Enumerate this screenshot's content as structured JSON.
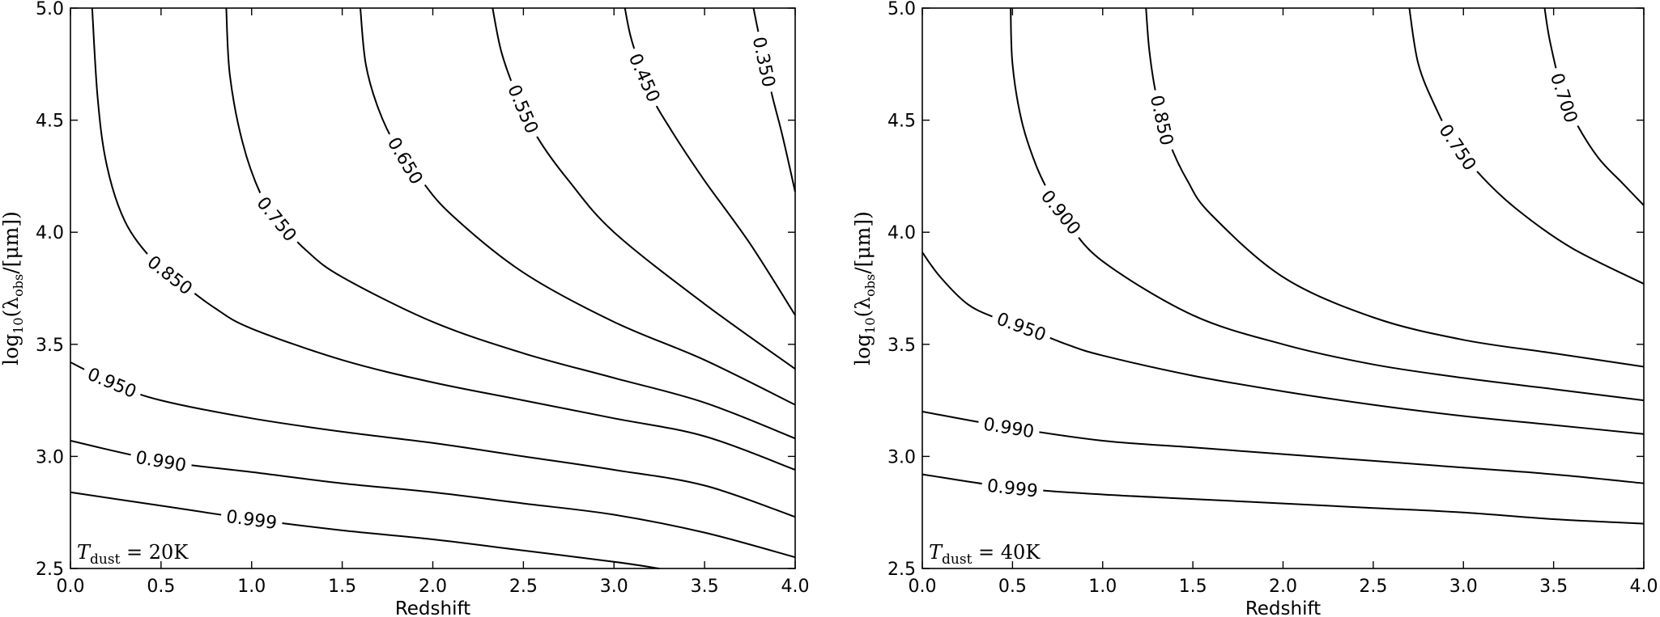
{
  "chart_data": [
    {
      "type": "contour",
      "xlabel": "Redshift",
      "ylabel": "log10(λobs/[μm])",
      "xlim": [
        0.0,
        4.0
      ],
      "ylim": [
        2.5,
        5.0
      ],
      "xticks": [
        "0.0",
        "0.5",
        "1.0",
        "1.5",
        "2.0",
        "2.5",
        "3.0",
        "3.5",
        "4.0"
      ],
      "yticks": [
        "2.5",
        "3.0",
        "3.5",
        "4.0",
        "4.5",
        "5.0"
      ],
      "annotation": {
        "T": "T",
        "sub": "dust",
        "rest": " = 20K"
      },
      "contours": [
        {
          "level": "0.999",
          "label_at": [
            1.0,
            2.72
          ],
          "points": [
            [
              0.0,
              2.84
            ],
            [
              0.5,
              2.78
            ],
            [
              1.0,
              2.72
            ],
            [
              1.5,
              2.67
            ],
            [
              2.0,
              2.63
            ],
            [
              2.5,
              2.58
            ],
            [
              3.0,
              2.53
            ],
            [
              3.25,
              2.5
            ]
          ]
        },
        {
          "level": "0.990",
          "label_at": [
            0.5,
            2.98
          ],
          "points": [
            [
              0.0,
              3.07
            ],
            [
              0.5,
              2.98
            ],
            [
              1.0,
              2.93
            ],
            [
              1.5,
              2.88
            ],
            [
              2.0,
              2.84
            ],
            [
              2.5,
              2.79
            ],
            [
              3.0,
              2.74
            ],
            [
              3.5,
              2.66
            ],
            [
              4.0,
              2.55
            ]
          ]
        },
        {
          "level": "0.950",
          "label_at": [
            0.23,
            3.33
          ],
          "points": [
            [
              0.0,
              3.42
            ],
            [
              0.25,
              3.32
            ],
            [
              0.5,
              3.25
            ],
            [
              1.0,
              3.17
            ],
            [
              1.5,
              3.11
            ],
            [
              2.0,
              3.06
            ],
            [
              2.5,
              3.0
            ],
            [
              3.0,
              2.94
            ],
            [
              3.5,
              2.87
            ],
            [
              4.0,
              2.73
            ]
          ]
        },
        {
          "level": "0.850",
          "label_at": [
            0.55,
            3.81
          ],
          "points": [
            [
              0.12,
              5.0
            ],
            [
              0.15,
              4.6
            ],
            [
              0.2,
              4.3
            ],
            [
              0.3,
              4.05
            ],
            [
              0.45,
              3.88
            ],
            [
              0.6,
              3.78
            ],
            [
              0.8,
              3.66
            ],
            [
              1.0,
              3.57
            ],
            [
              1.5,
              3.43
            ],
            [
              2.0,
              3.33
            ],
            [
              2.5,
              3.25
            ],
            [
              3.0,
              3.17
            ],
            [
              3.5,
              3.09
            ],
            [
              4.0,
              2.94
            ]
          ]
        },
        {
          "level": "0.750",
          "label_at": [
            1.14,
            4.06
          ],
          "points": [
            [
              0.86,
              5.0
            ],
            [
              0.88,
              4.7
            ],
            [
              0.95,
              4.4
            ],
            [
              1.05,
              4.17
            ],
            [
              1.15,
              4.05
            ],
            [
              1.3,
              3.92
            ],
            [
              1.5,
              3.8
            ],
            [
              2.0,
              3.6
            ],
            [
              2.5,
              3.46
            ],
            [
              3.0,
              3.35
            ],
            [
              3.5,
              3.24
            ],
            [
              4.0,
              3.08
            ]
          ]
        },
        {
          "level": "0.650",
          "label_at": [
            1.85,
            4.32
          ],
          "points": [
            [
              1.6,
              5.0
            ],
            [
              1.63,
              4.75
            ],
            [
              1.7,
              4.55
            ],
            [
              1.8,
              4.38
            ],
            [
              1.92,
              4.25
            ],
            [
              2.1,
              4.08
            ],
            [
              2.5,
              3.82
            ],
            [
              3.0,
              3.6
            ],
            [
              3.5,
              3.43
            ],
            [
              4.0,
              3.23
            ]
          ]
        },
        {
          "level": "0.550",
          "label_at": [
            2.5,
            4.55
          ],
          "points": [
            [
              2.33,
              5.0
            ],
            [
              2.38,
              4.8
            ],
            [
              2.47,
              4.6
            ],
            [
              2.58,
              4.42
            ],
            [
              2.75,
              4.23
            ],
            [
              3.0,
              4.0
            ],
            [
              3.5,
              3.68
            ],
            [
              4.0,
              3.39
            ]
          ]
        },
        {
          "level": "0.450",
          "label_at": [
            3.17,
            4.69
          ],
          "points": [
            [
              3.06,
              5.0
            ],
            [
              3.1,
              4.85
            ],
            [
              3.2,
              4.62
            ],
            [
              3.32,
              4.45
            ],
            [
              3.5,
              4.23
            ],
            [
              3.75,
              3.95
            ],
            [
              4.0,
              3.63
            ]
          ]
        },
        {
          "level": "0.350",
          "label_at": [
            3.83,
            4.76
          ],
          "points": [
            [
              3.77,
              5.0
            ],
            [
              3.8,
              4.88
            ],
            [
              3.87,
              4.62
            ],
            [
              3.93,
              4.43
            ],
            [
              4.0,
              4.18
            ]
          ]
        }
      ]
    },
    {
      "type": "contour",
      "xlabel": "Redshift",
      "ylabel": "log10(λobs/[μm])",
      "xlim": [
        0.0,
        4.0
      ],
      "ylim": [
        2.5,
        5.0
      ],
      "xticks": [
        "0.0",
        "0.5",
        "1.0",
        "1.5",
        "2.0",
        "2.5",
        "3.0",
        "3.5",
        "4.0"
      ],
      "yticks": [
        "2.5",
        "3.0",
        "3.5",
        "4.0",
        "4.5",
        "5.0"
      ],
      "annotation": {
        "T": "T",
        "sub": "dust",
        "rest": " = 40K"
      },
      "contours": [
        {
          "level": "0.999",
          "label_at": [
            0.5,
            2.86
          ],
          "points": [
            [
              0.0,
              2.92
            ],
            [
              0.5,
              2.86
            ],
            [
              1.0,
              2.83
            ],
            [
              1.5,
              2.81
            ],
            [
              2.0,
              2.79
            ],
            [
              2.5,
              2.77
            ],
            [
              3.0,
              2.75
            ],
            [
              3.5,
              2.72
            ],
            [
              4.0,
              2.7
            ]
          ]
        },
        {
          "level": "0.990",
          "label_at": [
            0.48,
            3.13
          ],
          "points": [
            [
              0.0,
              3.2
            ],
            [
              0.48,
              3.13
            ],
            [
              1.0,
              3.07
            ],
            [
              1.5,
              3.04
            ],
            [
              2.0,
              3.01
            ],
            [
              2.5,
              2.98
            ],
            [
              3.0,
              2.95
            ],
            [
              3.5,
              2.92
            ],
            [
              4.0,
              2.88
            ]
          ]
        },
        {
          "level": "0.950",
          "label_at": [
            0.55,
            3.58
          ],
          "points": [
            [
              0.0,
              3.91
            ],
            [
              0.1,
              3.8
            ],
            [
              0.25,
              3.68
            ],
            [
              0.4,
              3.62
            ],
            [
              0.55,
              3.58
            ],
            [
              0.8,
              3.5
            ],
            [
              1.0,
              3.45
            ],
            [
              1.5,
              3.36
            ],
            [
              2.0,
              3.29
            ],
            [
              2.5,
              3.23
            ],
            [
              3.0,
              3.18
            ],
            [
              3.5,
              3.14
            ],
            [
              4.0,
              3.1
            ]
          ]
        },
        {
          "level": "0.900",
          "label_at": [
            0.77,
            4.09
          ],
          "points": [
            [
              0.49,
              5.0
            ],
            [
              0.5,
              4.75
            ],
            [
              0.55,
              4.5
            ],
            [
              0.63,
              4.3
            ],
            [
              0.72,
              4.15
            ],
            [
              0.8,
              4.05
            ],
            [
              1.0,
              3.87
            ],
            [
              1.5,
              3.63
            ],
            [
              2.0,
              3.5
            ],
            [
              2.5,
              3.41
            ],
            [
              3.0,
              3.35
            ],
            [
              3.5,
              3.3
            ],
            [
              4.0,
              3.25
            ]
          ]
        },
        {
          "level": "0.850",
          "label_at": [
            1.33,
            4.5
          ],
          "points": [
            [
              1.24,
              5.0
            ],
            [
              1.26,
              4.8
            ],
            [
              1.3,
              4.6
            ],
            [
              1.37,
              4.4
            ],
            [
              1.47,
              4.23
            ],
            [
              1.6,
              4.08
            ],
            [
              2.0,
              3.8
            ],
            [
              2.5,
              3.62
            ],
            [
              3.0,
              3.52
            ],
            [
              3.5,
              3.46
            ],
            [
              4.0,
              3.4
            ]
          ]
        },
        {
          "level": "0.750",
          "label_at": [
            2.97,
            4.38
          ],
          "points": [
            [
              2.7,
              5.0
            ],
            [
              2.75,
              4.75
            ],
            [
              2.85,
              4.55
            ],
            [
              2.95,
              4.4
            ],
            [
              3.1,
              4.25
            ],
            [
              3.3,
              4.1
            ],
            [
              3.6,
              3.93
            ],
            [
              4.0,
              3.77
            ]
          ]
        },
        {
          "level": "0.700",
          "label_at": [
            3.56,
            4.6
          ],
          "points": [
            [
              3.45,
              5.0
            ],
            [
              3.48,
              4.85
            ],
            [
              3.55,
              4.62
            ],
            [
              3.63,
              4.48
            ],
            [
              3.75,
              4.33
            ],
            [
              3.88,
              4.22
            ],
            [
              4.0,
              4.12
            ]
          ]
        }
      ]
    }
  ]
}
